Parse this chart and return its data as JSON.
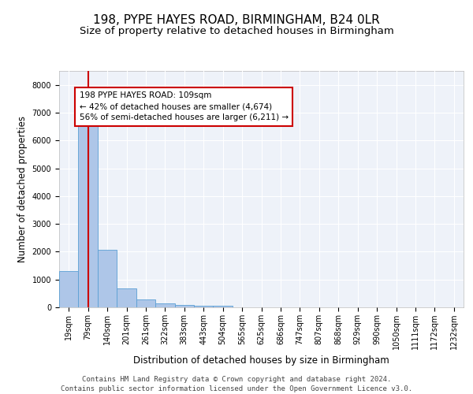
{
  "title_line1": "198, PYPE HAYES ROAD, BIRMINGHAM, B24 0LR",
  "title_line2": "Size of property relative to detached houses in Birmingham",
  "xlabel": "Distribution of detached houses by size in Birmingham",
  "ylabel": "Number of detached properties",
  "categories": [
    "19sqm",
    "79sqm",
    "140sqm",
    "201sqm",
    "261sqm",
    "322sqm",
    "383sqm",
    "443sqm",
    "504sqm",
    "565sqm",
    "625sqm",
    "686sqm",
    "747sqm",
    "807sqm",
    "868sqm",
    "929sqm",
    "990sqm",
    "1050sqm",
    "1111sqm",
    "1172sqm",
    "1232sqm"
  ],
  "values": [
    1300,
    6550,
    2080,
    690,
    270,
    140,
    95,
    60,
    55,
    0,
    0,
    0,
    0,
    0,
    0,
    0,
    0,
    0,
    0,
    0,
    0
  ],
  "bar_color": "#aec6e8",
  "bar_edge_color": "#5a9fd4",
  "ylim": [
    0,
    8500
  ],
  "yticks": [
    0,
    1000,
    2000,
    3000,
    4000,
    5000,
    6000,
    7000,
    8000
  ],
  "property_bar_index": 1,
  "vline_color": "#cc0000",
  "annotation_text": "198 PYPE HAYES ROAD: 109sqm\n← 42% of detached houses are smaller (4,674)\n56% of semi-detached houses are larger (6,211) →",
  "annotation_box_color": "#cc0000",
  "annotation_bg": "#ffffff",
  "footer_line1": "Contains HM Land Registry data © Crown copyright and database right 2024.",
  "footer_line2": "Contains public sector information licensed under the Open Government Licence v3.0.",
  "background_color": "#eef2f9",
  "grid_color": "#ffffff",
  "title_fontsize": 11,
  "subtitle_fontsize": 9.5,
  "axis_label_fontsize": 8.5,
  "tick_fontsize": 7,
  "footer_fontsize": 6.5,
  "annotation_fontsize": 7.5
}
